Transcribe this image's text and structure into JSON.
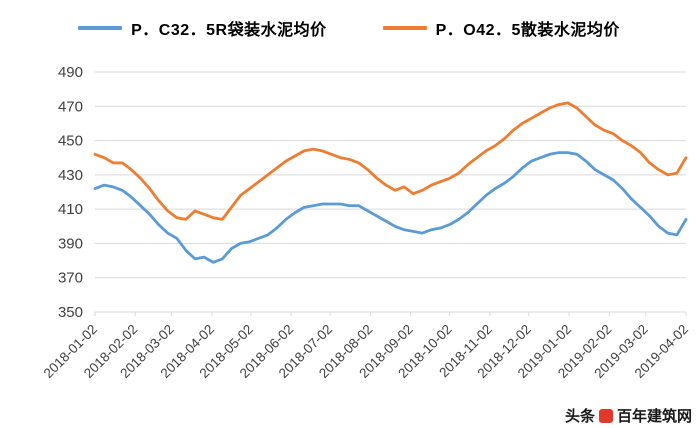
{
  "legend": {
    "series1_label": "P．C32．5R袋装水泥均价",
    "series2_label": "P．O42．5散装水泥均价"
  },
  "watermark": {
    "prefix": "头条",
    "name": "百年建筑网"
  },
  "colors": {
    "series1": "#5B9BD5",
    "series2": "#ED7D31",
    "grid": "#d9d9d9",
    "axis_text": "#404040"
  },
  "chart_data": {
    "type": "line",
    "title": "",
    "xlabel": "",
    "ylabel": "",
    "ylim": [
      350,
      490
    ],
    "y_tick_step": 20,
    "y_tick_labels": [
      350,
      370,
      390,
      410,
      430,
      450,
      470,
      490
    ],
    "grid": "horizontal",
    "legend_position": "top",
    "x_unit": "days since 2018-01-02",
    "sample_step_days": 7,
    "x_tick_days": [
      0,
      31,
      59,
      90,
      120,
      151,
      181,
      212,
      243,
      273,
      304,
      334,
      365,
      396,
      424,
      455
    ],
    "x_tick_labels": [
      "2018-01-02",
      "2018-02-02",
      "2018-03-02",
      "2018-04-02",
      "2018-05-02",
      "2018-06-02",
      "2018-07-02",
      "2018-08-02",
      "2018-09-02",
      "2018-10-02",
      "2018-11-02",
      "2018-12-02",
      "2019-01-02",
      "2019-02-02",
      "2019-03-02",
      "2019-04-02"
    ],
    "series": [
      {
        "name": "P．C32．5R袋装水泥均价",
        "color": "#5B9BD5",
        "values": [
          422,
          424,
          423,
          421,
          417,
          412,
          407,
          401,
          396,
          393,
          386,
          381,
          382,
          379,
          381,
          387,
          390,
          391,
          393,
          395,
          399,
          404,
          408,
          411,
          412,
          413,
          413,
          413,
          412,
          412,
          409,
          406,
          403,
          400,
          398,
          397,
          396,
          398,
          399,
          401,
          404,
          408,
          413,
          418,
          422,
          425,
          429,
          434,
          438,
          440,
          442,
          443,
          443,
          442,
          438,
          433,
          430,
          427,
          422,
          416,
          411,
          406,
          400,
          396,
          395,
          404
        ]
      },
      {
        "name": "P．O42．5散装水泥均价",
        "color": "#ED7D31",
        "values": [
          442,
          440,
          437,
          437,
          433,
          428,
          422,
          415,
          409,
          405,
          404,
          409,
          407,
          405,
          404,
          411,
          418,
          422,
          426,
          430,
          434,
          438,
          441,
          444,
          445,
          444,
          442,
          440,
          439,
          437,
          433,
          428,
          424,
          421,
          423,
          419,
          421,
          424,
          426,
          428,
          431,
          436,
          440,
          444,
          447,
          451,
          456,
          460,
          463,
          466,
          469,
          471,
          472,
          469,
          464,
          459,
          456,
          454,
          450,
          447,
          443,
          437,
          433,
          430,
          431,
          440
        ]
      }
    ]
  }
}
